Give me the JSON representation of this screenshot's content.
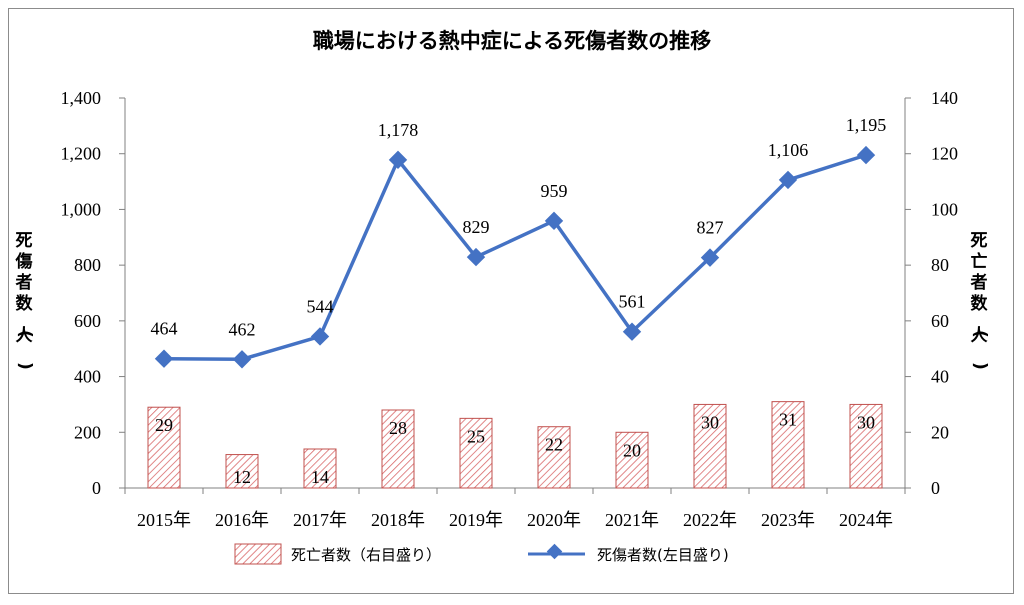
{
  "chart_data": {
    "type": "bar+line",
    "title": "職場における熱中症による死傷者数の推移",
    "categories": [
      "2015年",
      "2016年",
      "2017年",
      "2018年",
      "2019年",
      "2020年",
      "2021年",
      "2022年",
      "2023年",
      "2024年"
    ],
    "series": [
      {
        "name": "死亡者数（右目盛り）",
        "kind": "bar",
        "axis": "right",
        "values": [
          29,
          12,
          14,
          28,
          25,
          22,
          20,
          30,
          31,
          30
        ],
        "labels": [
          "29",
          "12",
          "14",
          "28",
          "25",
          "22",
          "20",
          "30",
          "31",
          "30"
        ]
      },
      {
        "name": "死傷者数(左目盛り)",
        "kind": "line",
        "axis": "left",
        "values": [
          464,
          462,
          544,
          1178,
          829,
          959,
          561,
          827,
          1106,
          1195
        ],
        "labels": [
          "464",
          "462",
          "544",
          "1,178",
          "829",
          "959",
          "561",
          "827",
          "1,106",
          "1,195"
        ]
      }
    ],
    "y_left": {
      "label": "死傷者数(人)",
      "range": [
        0,
        1400
      ],
      "ticks": [
        "0",
        "200",
        "400",
        "600",
        "800",
        "1,000",
        "1,200",
        "1,400"
      ]
    },
    "y_right": {
      "label": "死亡者数(人)",
      "range": [
        0,
        140
      ],
      "ticks": [
        "0",
        "20",
        "40",
        "60",
        "80",
        "100",
        "120",
        "140"
      ]
    },
    "legend_position": "bottom",
    "grid": false,
    "colors": {
      "line": "#4472c4",
      "bar_stroke": "#c0504d",
      "bar_hatch": "#d9696a",
      "axis": "#808080"
    }
  }
}
